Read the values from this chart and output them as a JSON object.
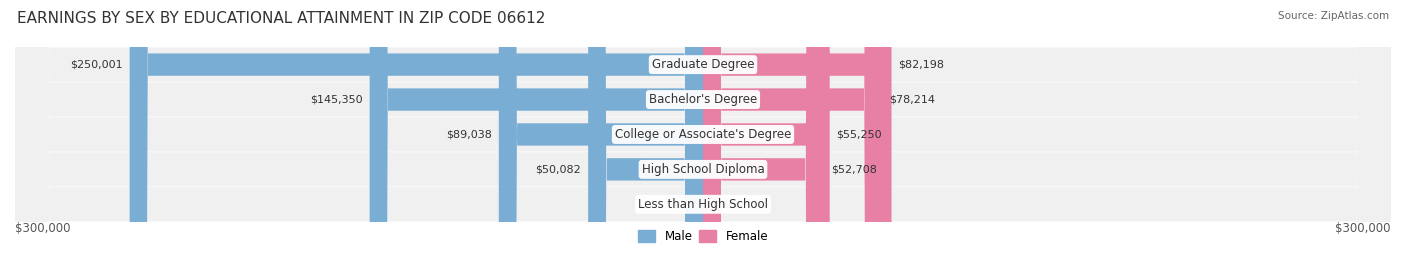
{
  "title": "EARNINGS BY SEX BY EDUCATIONAL ATTAINMENT IN ZIP CODE 06612",
  "source": "Source: ZipAtlas.com",
  "categories": [
    "Less than High School",
    "High School Diploma",
    "College or Associate's Degree",
    "Bachelor's Degree",
    "Graduate Degree"
  ],
  "male_values": [
    0,
    50082,
    89038,
    145350,
    250001
  ],
  "female_values": [
    0,
    52708,
    55250,
    78214,
    82198
  ],
  "male_color": "#7aadd4",
  "female_color": "#e87fa5",
  "bar_bg_color": "#e8e8e8",
  "row_bg_color": "#f0f0f0",
  "max_value": 300000,
  "xlabel_left": "$300,000",
  "xlabel_right": "$300,000",
  "legend_male": "Male",
  "legend_female": "Female",
  "title_fontsize": 11,
  "label_fontsize": 8.5,
  "category_fontsize": 8.5,
  "value_fontsize": 8
}
